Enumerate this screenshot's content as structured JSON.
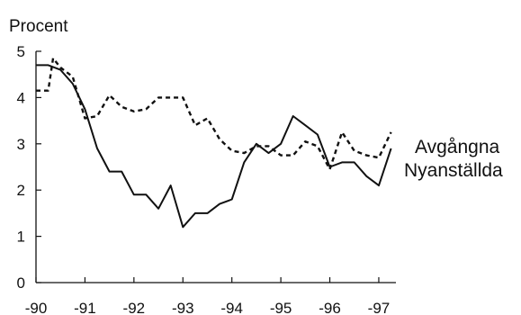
{
  "chart_data": {
    "type": "line",
    "title": "",
    "xlabel": "",
    "ylabel": "Procent",
    "ylim": [
      0,
      5
    ],
    "xlim": [
      1990,
      1997.35
    ],
    "yticks": [
      0,
      1,
      2,
      3,
      4,
      5
    ],
    "xticks": [
      1990,
      1991,
      1992,
      1993,
      1994,
      1995,
      1996,
      1997
    ],
    "xticklabels": [
      "-90",
      "-91",
      "-92",
      "-93",
      "-94",
      "-95",
      "-96",
      "-97"
    ],
    "grid": false,
    "series": [
      {
        "name": "Avgångna",
        "style": "dashed",
        "color": "#111111",
        "x": [
          1990.0,
          1990.25,
          1990.35,
          1990.5,
          1990.75,
          1991.0,
          1991.25,
          1991.5,
          1991.75,
          1992.0,
          1992.25,
          1992.5,
          1992.75,
          1993.0,
          1993.25,
          1993.5,
          1993.75,
          1994.0,
          1994.25,
          1994.5,
          1994.75,
          1995.0,
          1995.25,
          1995.5,
          1995.75,
          1996.0,
          1996.25,
          1996.5,
          1996.75,
          1997.0,
          1997.25
        ],
        "y": [
          4.15,
          4.15,
          4.85,
          4.65,
          4.45,
          3.55,
          3.6,
          4.05,
          3.8,
          3.7,
          3.75,
          4.0,
          4.0,
          4.0,
          3.4,
          3.55,
          3.1,
          2.85,
          2.8,
          2.95,
          2.95,
          2.75,
          2.75,
          3.05,
          2.95,
          2.45,
          3.25,
          2.85,
          2.75,
          2.7,
          3.25
        ]
      },
      {
        "name": "Nyanställda",
        "style": "solid",
        "color": "#111111",
        "x": [
          1990.0,
          1990.25,
          1990.5,
          1990.75,
          1991.0,
          1991.25,
          1991.5,
          1991.75,
          1992.0,
          1992.25,
          1992.5,
          1992.75,
          1993.0,
          1993.25,
          1993.5,
          1993.75,
          1994.0,
          1994.25,
          1994.5,
          1994.75,
          1995.0,
          1995.25,
          1995.5,
          1995.75,
          1996.0,
          1996.25,
          1996.5,
          1996.75,
          1997.0,
          1997.25
        ],
        "y": [
          4.7,
          4.7,
          4.6,
          4.3,
          3.75,
          2.9,
          2.4,
          2.4,
          1.9,
          1.9,
          1.6,
          2.1,
          1.2,
          1.5,
          1.5,
          1.7,
          1.8,
          2.6,
          3.0,
          2.8,
          3.0,
          3.6,
          3.4,
          3.2,
          2.5,
          2.6,
          2.6,
          2.3,
          2.1,
          2.9
        ]
      }
    ],
    "legend_placement": "right, labels at line ends"
  }
}
